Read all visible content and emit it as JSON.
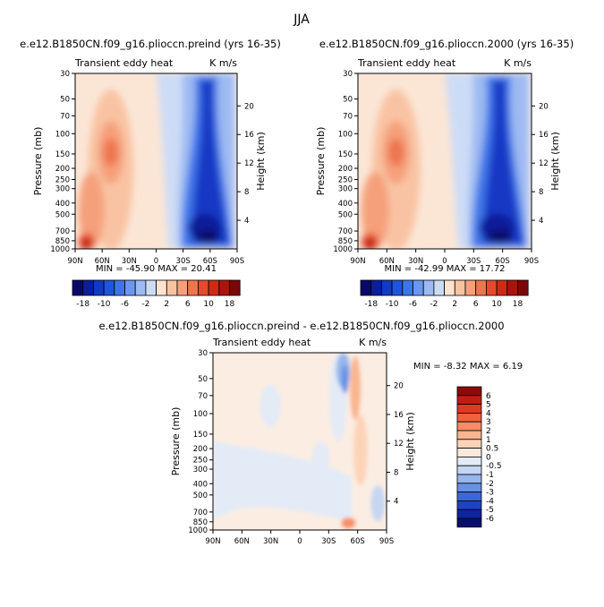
{
  "page": {
    "title": "JJA"
  },
  "chart_data": [
    {
      "type": "heatmap",
      "title": "e.e12.B1850CN.f09_g16.plioccn.preind (yrs 16-35)",
      "subtitle_left": "Transient eddy heat",
      "subtitle_right": "K m/s",
      "ylabel": "Pressure (mb)",
      "ylabel_right": "Height (km)",
      "x_ticks": [
        "90N",
        "60N",
        "30N",
        "0",
        "30S",
        "60S",
        "90S"
      ],
      "y_ticks": [
        "30",
        "50",
        "70",
        "100",
        "150",
        "200",
        "250",
        "300",
        "400",
        "500",
        "700",
        "850",
        "1000"
      ],
      "height_ticks": [
        "20",
        "16",
        "12",
        "8",
        "4"
      ],
      "stats": "MIN = -45.90   MAX = 20.41",
      "scale": "full"
    },
    {
      "type": "heatmap",
      "title": "e.e12.B1850CN.f09_g16.plioccn.2000 (yrs 16-35)",
      "subtitle_left": "Transient eddy heat",
      "subtitle_right": "K m/s",
      "ylabel": "Pressure (mb)",
      "ylabel_right": "Height (km)",
      "x_ticks": [
        "90N",
        "60N",
        "30N",
        "0",
        "30S",
        "60S",
        "90S"
      ],
      "y_ticks": [
        "30",
        "50",
        "70",
        "100",
        "150",
        "200",
        "250",
        "300",
        "400",
        "500",
        "700",
        "850",
        "1000"
      ],
      "height_ticks": [
        "20",
        "16",
        "12",
        "8",
        "4"
      ],
      "stats": "MIN = -42.99   MAX = 17.72",
      "scale": "full"
    },
    {
      "type": "heatmap",
      "title": "e.e12.B1850CN.f09_g16.plioccn.preind - e.e12.B1850CN.f09_g16.plioccn.2000",
      "subtitle_left": "Transient eddy heat",
      "subtitle_right": "K m/s",
      "ylabel": "Pressure (mb)",
      "ylabel_right": "Height (km)",
      "x_ticks": [
        "90N",
        "60N",
        "30N",
        "0",
        "30S",
        "60S",
        "90S"
      ],
      "y_ticks": [
        "30",
        "50",
        "70",
        "100",
        "150",
        "200",
        "250",
        "300",
        "400",
        "500",
        "700",
        "850",
        "1000"
      ],
      "height_ticks": [
        "20",
        "16",
        "12",
        "8",
        "4"
      ],
      "stats": "MIN =  -8.32   MAX =   6.19",
      "scale": "diff"
    }
  ],
  "colorbar_full": {
    "labels": [
      "-18",
      "-10",
      "-6",
      "-2",
      "2",
      "6",
      "10",
      "18"
    ],
    "colors": [
      "#08086b",
      "#0b1f9a",
      "#1338c4",
      "#1f55db",
      "#3d75e8",
      "#6a97ef",
      "#9dbaf2",
      "#cddcf6",
      "#fce3d0",
      "#f9c3a3",
      "#f5a07a",
      "#ee7550",
      "#e64a2a",
      "#cf2a14",
      "#a8150c",
      "#7a0707"
    ]
  },
  "colorbar_diff": {
    "labels": [
      "6",
      "5",
      "4",
      "3",
      "2",
      "1",
      "0.5",
      "0",
      "-0.5",
      "-1",
      "-2",
      "-3",
      "-4",
      "-5",
      "-6"
    ],
    "colors": [
      "#8e0a0a",
      "#c21c12",
      "#e03a1e",
      "#f0603a",
      "#f78d64",
      "#fab48f",
      "#fcd3b8",
      "#fbe9dc",
      "#e3ebf7",
      "#c4d6f3",
      "#96b6ed",
      "#6890e3",
      "#3c67d8",
      "#1e43c2",
      "#0c26a0",
      "#08106e"
    ]
  }
}
